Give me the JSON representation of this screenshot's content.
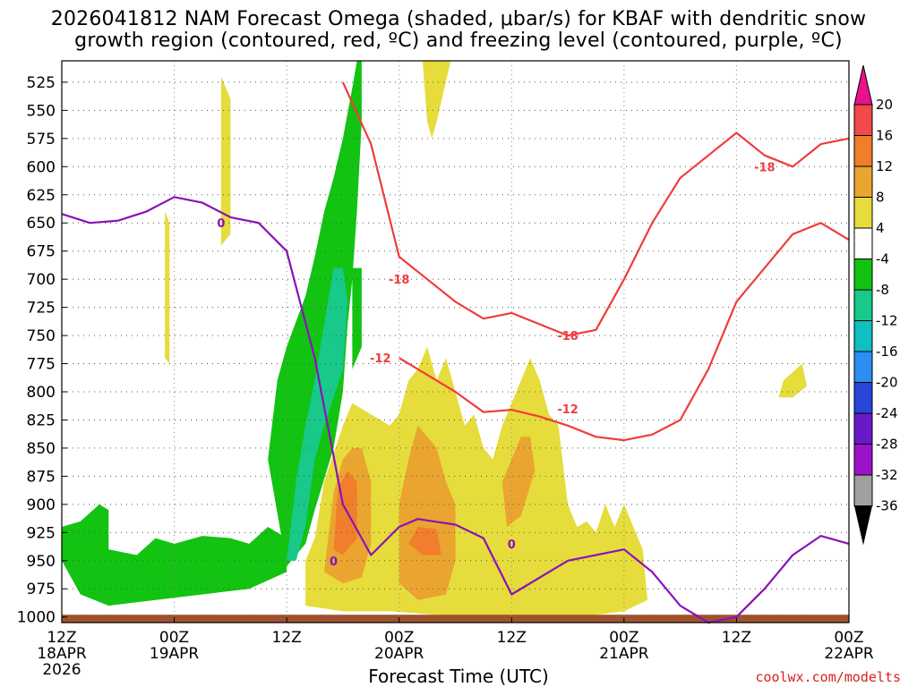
{
  "title": {
    "line1": "2026041812 NAM Forecast Omega (shaded, μbar/s) for KBAF with dendritic snow",
    "line2": "growth region (contoured, red, ºC) and freezing level (contoured, purple, ºC)"
  },
  "credit": "coolwx.com/modelts",
  "chart_data": {
    "type": "time-height cross section",
    "xlabel": "Forecast Time (UTC)",
    "ylabel": "Pressure (mb)",
    "x_ticks": [
      {
        "top": "12Z",
        "bottom": "18APR",
        "extra": "2026"
      },
      {
        "top": "00Z",
        "bottom": "19APR"
      },
      {
        "top": "12Z",
        "bottom": ""
      },
      {
        "top": "00Z",
        "bottom": "20APR"
      },
      {
        "top": "12Z",
        "bottom": ""
      },
      {
        "top": "00Z",
        "bottom": "21APR"
      },
      {
        "top": "12Z",
        "bottom": ""
      },
      {
        "top": "00Z",
        "bottom": "22APR"
      }
    ],
    "x_range_hours": [
      0,
      84
    ],
    "y_ticks": [
      "525",
      "550",
      "575",
      "600",
      "625",
      "650",
      "675",
      "700",
      "725",
      "750",
      "775",
      "800",
      "825",
      "850",
      "875",
      "900",
      "925",
      "950",
      "975",
      "1000"
    ],
    "y_range_mb": [
      1005,
      506
    ],
    "colorbar": {
      "labels": [
        "20",
        "16",
        "12",
        "8",
        "4",
        "-4",
        "-8",
        "-12",
        "-16",
        "-20",
        "-24",
        "-28",
        "-32",
        "-36"
      ],
      "colors": [
        "#f04a4a",
        "#f07e2a",
        "#e9a52f",
        "#e6dc3c",
        "#ffffff",
        "#12c312",
        "#18c98a",
        "#10bfbf",
        "#2a8ff0",
        "#2846d8",
        "#6a18c8",
        "#9c12c8",
        "#a0a0a0"
      ],
      "top_arrow": "#e8128a",
      "bottom_arrow": "#000000"
    },
    "contour_labels": {
      "freezing_level": [
        "0",
        "0",
        "0"
      ],
      "dgz": [
        "-18",
        "-18",
        "-18",
        "-12",
        "-12"
      ]
    },
    "series": [
      {
        "name": "freezing level (0ºC)",
        "hours": [
          0,
          3,
          6,
          9,
          12,
          15,
          18,
          21,
          24,
          27,
          30,
          33,
          36,
          38,
          42,
          45,
          48,
          54,
          60,
          63,
          66,
          69,
          72,
          75,
          78,
          81,
          84
        ],
        "pressure_mb": [
          642,
          650,
          648,
          640,
          627,
          632,
          645,
          650,
          675,
          770,
          900,
          945,
          920,
          913,
          918,
          930,
          980,
          950,
          940,
          960,
          990,
          1005,
          1000,
          975,
          945,
          928,
          935
        ]
      },
      {
        "name": "-12ºC isotherm",
        "hours": [
          36,
          39,
          42,
          45,
          48,
          51,
          54,
          57,
          60,
          63,
          66,
          69,
          72,
          75,
          78,
          81,
          84
        ],
        "pressure_mb": [
          770,
          785,
          800,
          818,
          816,
          822,
          830,
          840,
          843,
          838,
          825,
          780,
          720,
          690,
          660,
          650,
          665
        ]
      },
      {
        "name": "-18ºC isotherm",
        "hours": [
          30,
          33,
          36,
          39,
          42,
          45,
          48,
          51,
          54,
          57,
          60,
          63,
          66,
          69,
          72,
          75,
          78,
          81,
          84
        ],
        "pressure_mb": [
          525,
          580,
          680,
          700,
          720,
          735,
          730,
          740,
          750,
          745,
          700,
          650,
          610,
          590,
          570,
          590,
          600,
          580,
          575
        ]
      }
    ]
  }
}
